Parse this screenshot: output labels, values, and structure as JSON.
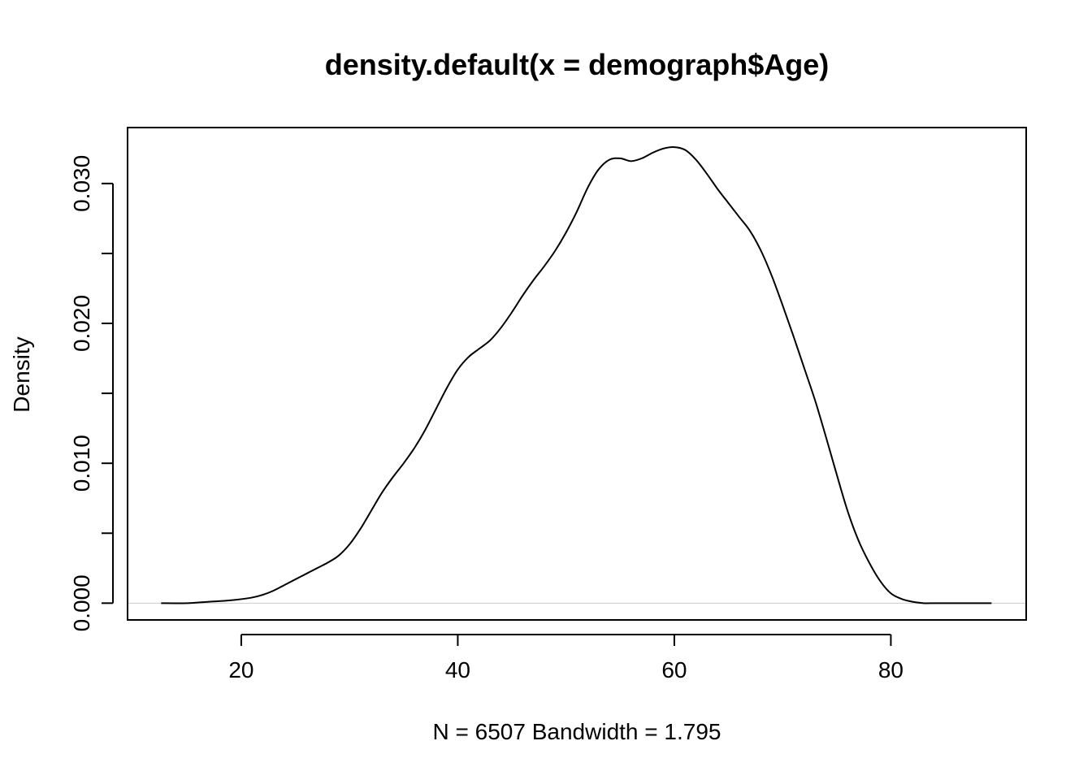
{
  "chart_data": {
    "type": "line",
    "title": "density.default(x = demograph$Age)",
    "xlabel": "N = 6507   Bandwidth = 1.795",
    "ylabel": "Density",
    "xlim": [
      9.5,
      92.5
    ],
    "ylim": [
      -0.0012,
      0.034
    ],
    "x_ticks": [
      20,
      40,
      60,
      80
    ],
    "x_tick_labels": [
      "20",
      "40",
      "60",
      "80"
    ],
    "y_ticks": [
      0.0,
      0.005,
      0.01,
      0.015,
      0.02,
      0.025,
      0.03
    ],
    "y_tick_labels": [
      "0.000",
      "",
      "0.010",
      "",
      "0.020",
      "",
      "0.030"
    ],
    "grid": false,
    "legend": "none",
    "line_color": "#000000",
    "zero_line_color": "#cccccc",
    "series": [
      {
        "x": [
          12.6,
          15,
          17,
          19,
          21,
          22,
          23,
          24,
          25,
          26,
          27,
          28,
          29,
          30,
          31,
          32,
          33,
          34,
          35,
          36,
          37,
          38,
          39,
          40,
          41,
          42,
          43,
          44,
          45,
          46,
          47,
          48,
          49,
          50,
          51,
          52,
          53,
          54,
          55,
          56,
          57,
          58,
          59,
          60,
          61,
          62,
          63,
          64,
          65,
          66,
          67,
          68,
          69,
          70,
          71,
          72,
          73,
          74,
          75,
          76,
          77,
          78,
          79,
          80,
          81,
          82,
          83,
          84,
          85,
          87,
          89.3
        ],
        "y": [
          0.0,
          0.0,
          0.0001,
          0.0002,
          0.0004,
          0.0006,
          0.0009,
          0.0013,
          0.0017,
          0.0021,
          0.0025,
          0.0029,
          0.0034,
          0.0042,
          0.0053,
          0.0066,
          0.0079,
          0.009,
          0.01,
          0.0111,
          0.0124,
          0.0139,
          0.0154,
          0.0167,
          0.0176,
          0.0182,
          0.0188,
          0.0197,
          0.0208,
          0.022,
          0.0231,
          0.0241,
          0.0252,
          0.0265,
          0.028,
          0.0297,
          0.031,
          0.0317,
          0.0318,
          0.0316,
          0.0318,
          0.0322,
          0.0325,
          0.0326,
          0.0324,
          0.0317,
          0.0307,
          0.0296,
          0.0286,
          0.0276,
          0.0266,
          0.0252,
          0.0234,
          0.0213,
          0.0191,
          0.0168,
          0.0145,
          0.0119,
          0.0092,
          0.0066,
          0.0045,
          0.0029,
          0.0016,
          0.0007,
          0.0003,
          0.0001,
          0.0,
          0.0,
          0.0,
          0.0,
          0.0
        ]
      }
    ]
  }
}
